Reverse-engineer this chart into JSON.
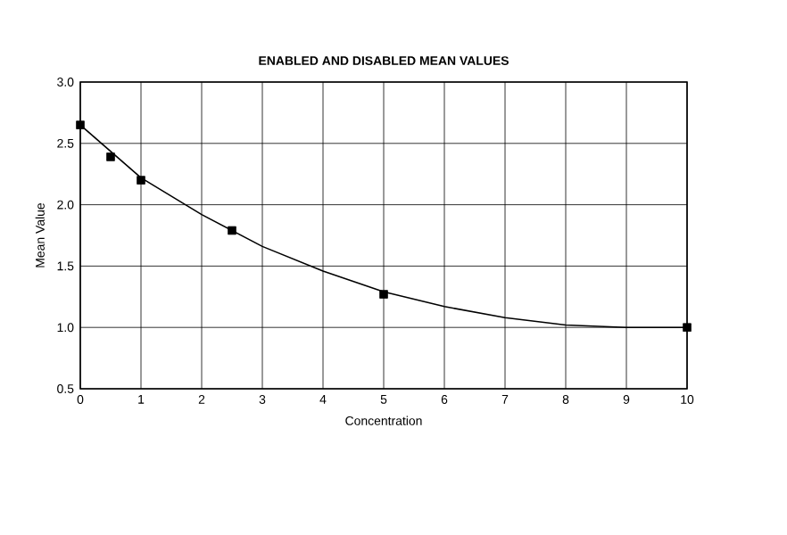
{
  "chart_data": {
    "type": "scatter",
    "title": "ENABLED AND DISABLED MEAN VALUES",
    "xlabel": "Concentration",
    "ylabel": "Mean Value",
    "xlim": [
      0,
      10
    ],
    "xticks": [
      0,
      1,
      2,
      3,
      4,
      5,
      6,
      7,
      8,
      9,
      10
    ],
    "ylim": [
      0.5,
      3.0
    ],
    "yticks": [
      0.5,
      {
        "value": 1,
        "label": "1.0"
      },
      1.5,
      {
        "value": 2,
        "label": "2.0"
      },
      2.5,
      {
        "value": 3,
        "label": "3.0"
      }
    ],
    "grid": true,
    "series": [
      {
        "color": "#000000",
        "marker": "square",
        "x": [
          0,
          0.5,
          1,
          2.5,
          5,
          10
        ],
        "values": [
          2.65,
          2.39,
          2.2,
          1.79,
          1.27,
          1.0
        ]
      },
      {
        "type": "line",
        "color": "#000000",
        "marker": "none",
        "line_style": "solid",
        "x": [
          0,
          1,
          2,
          3,
          4,
          5,
          6,
          7,
          8,
          9,
          10
        ],
        "values": [
          2.65,
          2.22,
          1.92,
          1.66,
          1.46,
          1.29,
          1.17,
          1.08,
          1.02,
          1.0,
          1.0
        ]
      }
    ]
  }
}
